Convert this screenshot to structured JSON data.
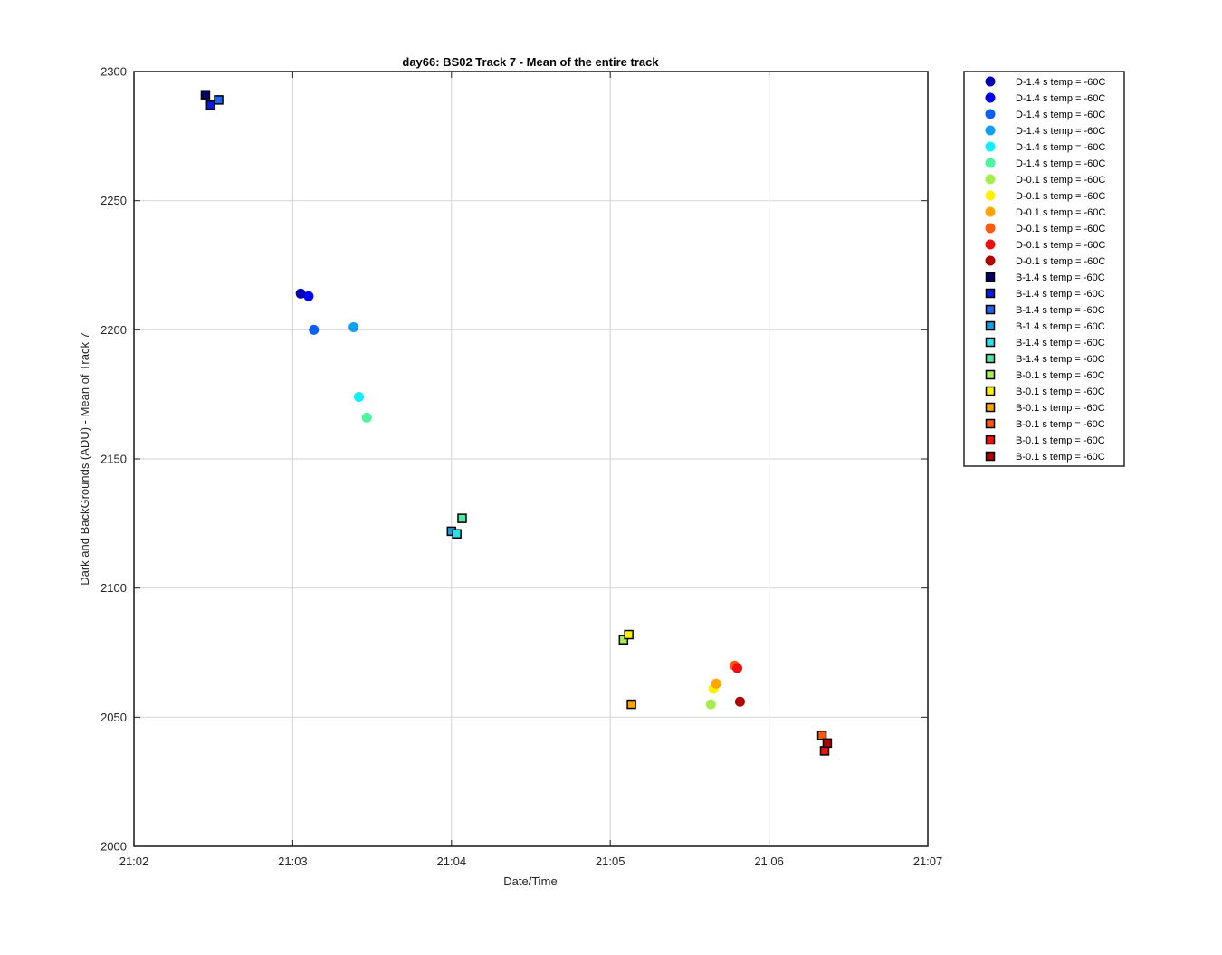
{
  "chart_data": {
    "type": "scatter",
    "title": "day66: BS02  Track 7 - Mean of the entire track",
    "xlabel": "Date/Time",
    "ylabel": "Dark and BackGrounds (ADU) - Mean of Track 7",
    "xlim": [
      "21:02",
      "21:07"
    ],
    "ylim": [
      2000,
      2300
    ],
    "x_ticks": [
      "21:02",
      "21:03",
      "21:04",
      "21:05",
      "21:06",
      "21:07"
    ],
    "y_ticks": [
      2000,
      2050,
      2100,
      2150,
      2200,
      2250,
      2300
    ],
    "grid": true,
    "legend_position": "outside-right",
    "series": [
      {
        "name": "D-1.4 s temp = -60C",
        "marker": "circle",
        "color": "#0000b0",
        "points": [
          {
            "x": "21:03:03",
            "y": 2214
          }
        ]
      },
      {
        "name": "D-1.4 s temp = -60C",
        "marker": "circle",
        "color": "#0000ee",
        "points": [
          {
            "x": "21:03:06",
            "y": 2213
          }
        ]
      },
      {
        "name": "D-1.4 s temp = -60C",
        "marker": "circle",
        "color": "#0d5ef5",
        "points": [
          {
            "x": "21:03:08",
            "y": 2200
          }
        ]
      },
      {
        "name": "D-1.4 s temp = -60C",
        "marker": "circle",
        "color": "#10a0f0",
        "points": [
          {
            "x": "21:03:23",
            "y": 2201
          }
        ]
      },
      {
        "name": "D-1.4 s temp = -60C",
        "marker": "circle",
        "color": "#10eeff",
        "points": [
          {
            "x": "21:03:25",
            "y": 2174
          }
        ]
      },
      {
        "name": "D-1.4 s temp = -60C",
        "marker": "circle",
        "color": "#4cf5a0",
        "points": [
          {
            "x": "21:03:28",
            "y": 2166
          }
        ]
      },
      {
        "name": "D-0.1 s temp = -60C",
        "marker": "circle",
        "color": "#a4ef4c",
        "points": [
          {
            "x": "21:05:38",
            "y": 2055
          }
        ]
      },
      {
        "name": "D-0.1 s temp = -60C",
        "marker": "circle",
        "color": "#fff000",
        "points": [
          {
            "x": "21:05:39",
            "y": 2061
          }
        ]
      },
      {
        "name": "D-0.1 s temp = -60C",
        "marker": "circle",
        "color": "#ffa500",
        "points": [
          {
            "x": "21:05:40",
            "y": 2063
          }
        ]
      },
      {
        "name": "D-0.1 s temp = -60C",
        "marker": "circle",
        "color": "#ff5a10",
        "points": [
          {
            "x": "21:05:47",
            "y": 2070
          }
        ]
      },
      {
        "name": "D-0.1 s temp = -60C",
        "marker": "circle",
        "color": "#ee1010",
        "points": [
          {
            "x": "21:05:48",
            "y": 2069
          }
        ]
      },
      {
        "name": "D-0.1 s temp = -60C",
        "marker": "circle",
        "color": "#b00000",
        "points": [
          {
            "x": "21:05:49",
            "y": 2056
          }
        ]
      },
      {
        "name": "B-1.4 s temp = -60C",
        "marker": "square",
        "color": "#00006a",
        "points": [
          {
            "x": "21:02:27",
            "y": 2291
          }
        ]
      },
      {
        "name": "B-1.4 s temp = -60C",
        "marker": "square",
        "color": "#0a18e0",
        "points": [
          {
            "x": "21:02:29",
            "y": 2287
          }
        ]
      },
      {
        "name": "B-1.4 s temp = -60C",
        "marker": "square",
        "color": "#1e64f0",
        "points": [
          {
            "x": "21:02:32",
            "y": 2289
          }
        ]
      },
      {
        "name": "B-1.4 s temp = -60C",
        "marker": "square",
        "color": "#10a0e8",
        "points": [
          {
            "x": "21:04:00",
            "y": 2122
          }
        ]
      },
      {
        "name": "B-1.4 s temp = -60C",
        "marker": "square",
        "color": "#28e0e8",
        "points": [
          {
            "x": "21:04:02",
            "y": 2121
          }
        ]
      },
      {
        "name": "B-1.4 s temp = -60C",
        "marker": "square",
        "color": "#50e8a0",
        "points": [
          {
            "x": "21:04:04",
            "y": 2127
          }
        ]
      },
      {
        "name": "B-0.1 s temp = -60C",
        "marker": "square",
        "color": "#a8ee50",
        "points": [
          {
            "x": "21:05:05",
            "y": 2080
          }
        ]
      },
      {
        "name": "B-0.1 s temp = -60C",
        "marker": "square",
        "color": "#fff000",
        "points": [
          {
            "x": "21:05:07",
            "y": 2082
          }
        ]
      },
      {
        "name": "B-0.1 s temp = -60C",
        "marker": "square",
        "color": "#ffa500",
        "points": [
          {
            "x": "21:05:08",
            "y": 2055
          }
        ]
      },
      {
        "name": "B-0.1 s temp = -60C",
        "marker": "square",
        "color": "#ff5a10",
        "points": [
          {
            "x": "21:06:20",
            "y": 2043
          }
        ]
      },
      {
        "name": "B-0.1 s temp = -60C",
        "marker": "square",
        "color": "#ee1010",
        "points": [
          {
            "x": "21:06:21",
            "y": 2037
          }
        ]
      },
      {
        "name": "B-0.1 s temp = -60C",
        "marker": "square",
        "color": "#b00000",
        "points": [
          {
            "x": "21:06:22",
            "y": 2040
          }
        ]
      }
    ]
  }
}
